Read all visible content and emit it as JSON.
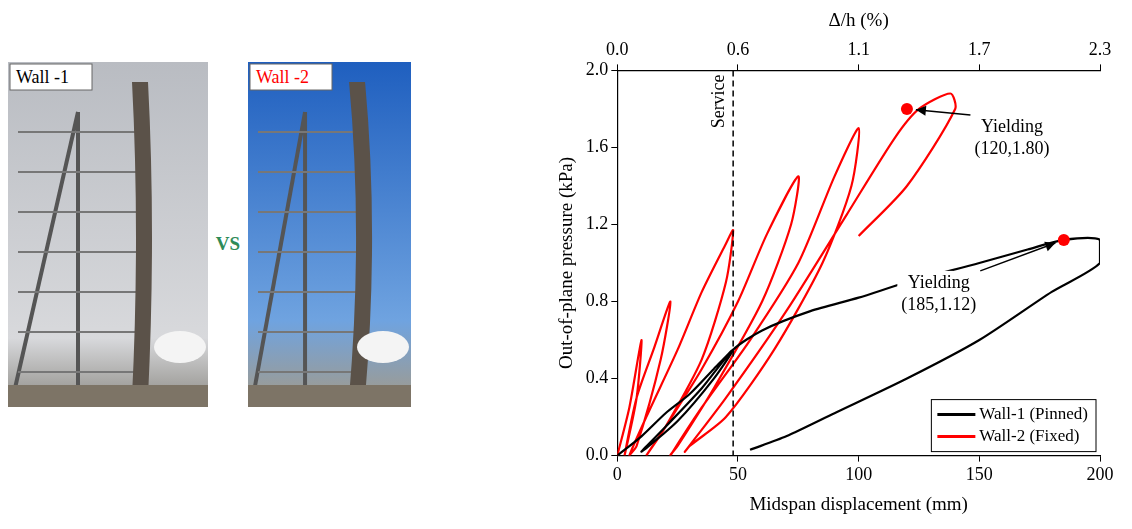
{
  "panels": {
    "photos": [
      {
        "label": "Wall -1",
        "color": "#000000"
      },
      {
        "label": "Wall -2",
        "color": "#ff0000"
      }
    ],
    "separator": {
      "text": "VS",
      "color": "#2e8b57"
    }
  },
  "chart_data": {
    "type": "line",
    "x_label": "Midspan displacement (mm)",
    "y_label": "Out-of-plane pressure (kPa)",
    "x2_label": "Δ/h (%)",
    "xlim": [
      0,
      200
    ],
    "xticks": [
      0,
      50,
      100,
      150,
      200
    ],
    "x2lim": [
      0,
      2.3
    ],
    "x2ticks": [
      {
        "value": 0,
        "label": "0.0"
      },
      {
        "value": 0.575,
        "label": "0.6"
      },
      {
        "value": 1.15,
        "label": "1.1"
      },
      {
        "value": 1.725,
        "label": "1.7"
      },
      2.3
    ],
    "ylim": [
      0,
      2
    ],
    "yticks": [
      {
        "value": 0,
        "label": "0.0"
      },
      0.4,
      0.8,
      1.2,
      1.6,
      {
        "value": 2,
        "label": "2.0"
      }
    ],
    "grid": false,
    "legend": "lower right",
    "series": [
      {
        "name": "Wall-1 (Pinned)",
        "color": "#000000",
        "x": [
          0,
          10,
          20,
          30,
          40,
          48,
          40,
          25,
          10,
          20,
          35,
          48,
          60,
          80,
          100,
          120,
          150,
          170,
          185,
          200,
          200,
          180,
          150,
          120,
          90,
          70,
          55
        ],
        "values": [
          0,
          0.1,
          0.22,
          0.32,
          0.45,
          0.55,
          0.4,
          0.18,
          0.02,
          0.15,
          0.35,
          0.55,
          0.65,
          0.75,
          0.82,
          0.9,
          1.0,
          1.07,
          1.12,
          1.12,
          1.0,
          0.85,
          0.6,
          0.4,
          0.22,
          0.1,
          0.03
        ]
      },
      {
        "name": "Wall-2 (Fixed)",
        "color": "#ff0000",
        "x": [
          0,
          5,
          10,
          8,
          3,
          8,
          15,
          22,
          18,
          8,
          5,
          12,
          25,
          35,
          45,
          48,
          45,
          35,
          20,
          12,
          20,
          35,
          50,
          62,
          75,
          72,
          60,
          40,
          25,
          22,
          35,
          55,
          75,
          90,
          100,
          97,
          85,
          65,
          45,
          30,
          28,
          45,
          70,
          95,
          115,
          125,
          138,
          140,
          120,
          100
        ],
        "values": [
          0,
          0.25,
          0.6,
          0.3,
          0,
          0.3,
          0.55,
          0.8,
          0.5,
          0.05,
          0,
          0.2,
          0.55,
          0.85,
          1.1,
          1.17,
          0.9,
          0.5,
          0.15,
          0,
          0.15,
          0.45,
          0.8,
          1.15,
          1.45,
          1.2,
          0.8,
          0.35,
          0.05,
          0,
          0.25,
          0.6,
          1.0,
          1.45,
          1.7,
          1.4,
          1.0,
          0.55,
          0.2,
          0.05,
          0.02,
          0.3,
          0.75,
          1.25,
          1.65,
          1.8,
          1.88,
          1.8,
          1.4,
          1.14
        ]
      }
    ],
    "annotations": [
      {
        "text": "Yielding",
        "label": "(120,1.80)",
        "x": 120,
        "y": 1.8,
        "color": "#ff0000"
      },
      {
        "text": "Yielding",
        "label": "(185,1.12)",
        "x": 185,
        "y": 1.12,
        "color": "#ff0000"
      }
    ],
    "reference_line": {
      "text": "Service",
      "x": 48,
      "line_style": "dashed",
      "color": "#000000"
    }
  }
}
